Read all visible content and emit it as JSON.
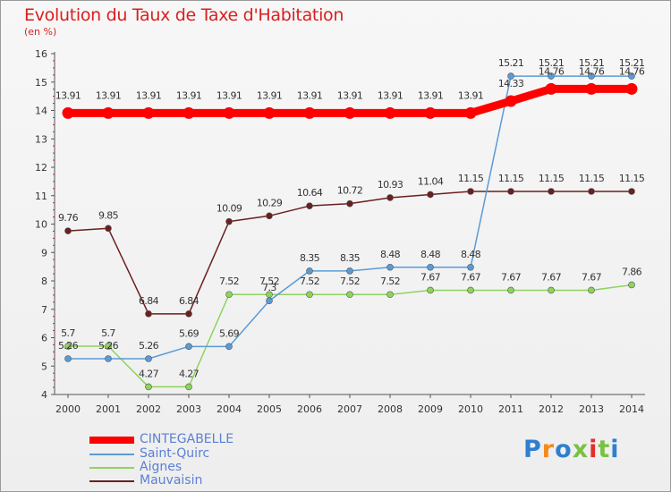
{
  "title": "Evolution du Taux de Taxe d'Habitation",
  "subtitle": "(en %)",
  "logo": {
    "text": "Proxiti",
    "letter_colors": [
      "#2f7fd0",
      "#f28a1c",
      "#2f7fd0",
      "#7ac143",
      "#e0302a",
      "#7ac143",
      "#2f7fd0"
    ]
  },
  "chart_data": {
    "type": "line",
    "x": [
      "2000",
      "2001",
      "2002",
      "2003",
      "2004",
      "2005",
      "2006",
      "2007",
      "2008",
      "2009",
      "2010",
      "2011",
      "2012",
      "2013",
      "2014"
    ],
    "ylim": [
      4,
      16
    ],
    "yticks": [
      4,
      5,
      6,
      7,
      8,
      9,
      10,
      11,
      12,
      13,
      14,
      15,
      16
    ],
    "grid": false,
    "series": [
      {
        "name": "CINTEGABELLE",
        "color": "#ff0000",
        "values": [
          13.91,
          13.91,
          13.91,
          13.91,
          13.91,
          13.91,
          13.91,
          13.91,
          13.91,
          13.91,
          13.91,
          14.33,
          14.76,
          14.76,
          14.76
        ],
        "labels": [
          "13.91",
          "13.91",
          "13.91",
          "13.91",
          "13.91",
          "13.91",
          "13.91",
          "13.91",
          "13.91",
          "13.91",
          "13.91",
          "14.33",
          "14.76",
          "14.76",
          "14.76"
        ]
      },
      {
        "name": "Saint-Quirc",
        "color": "#5b9bd5",
        "values": [
          5.26,
          5.26,
          5.26,
          5.69,
          5.69,
          7.3,
          8.35,
          8.35,
          8.48,
          8.48,
          8.48,
          15.21,
          15.21,
          15.21,
          15.21
        ],
        "labels": [
          "5.26",
          "5.26",
          "5.26",
          "5.69",
          "5.69",
          "7.3",
          "8.35",
          "8.35",
          "8.48",
          "8.48",
          "8.48",
          "15.21",
          "15.21",
          "15.21",
          "15.21"
        ]
      },
      {
        "name": "Aignes",
        "color": "#8fd35e",
        "values": [
          5.7,
          5.7,
          4.27,
          4.27,
          7.52,
          7.52,
          7.52,
          7.52,
          7.52,
          7.67,
          7.67,
          7.67,
          7.67,
          7.67,
          7.86
        ],
        "labels": [
          "5.7",
          "5.7",
          "4.27",
          "4.27",
          "7.52",
          "7.52",
          "7.52",
          "7.52",
          "7.52",
          "7.67",
          "7.67",
          "7.67",
          "7.67",
          "7.67",
          "7.86"
        ]
      },
      {
        "name": "Mauvaisin",
        "color": "#6b1f1f",
        "values": [
          9.76,
          9.85,
          6.84,
          6.84,
          10.09,
          10.29,
          10.64,
          10.72,
          10.93,
          11.04,
          11.15,
          11.15,
          11.15,
          11.15,
          11.15
        ],
        "labels": [
          "9.76",
          "9.85",
          "6.84",
          "6.84",
          "10.09",
          "10.29",
          "10.64",
          "10.72",
          "10.93",
          "11.04",
          "11.15",
          "11.15",
          "11.15",
          "11.15",
          "11.15"
        ]
      }
    ]
  }
}
